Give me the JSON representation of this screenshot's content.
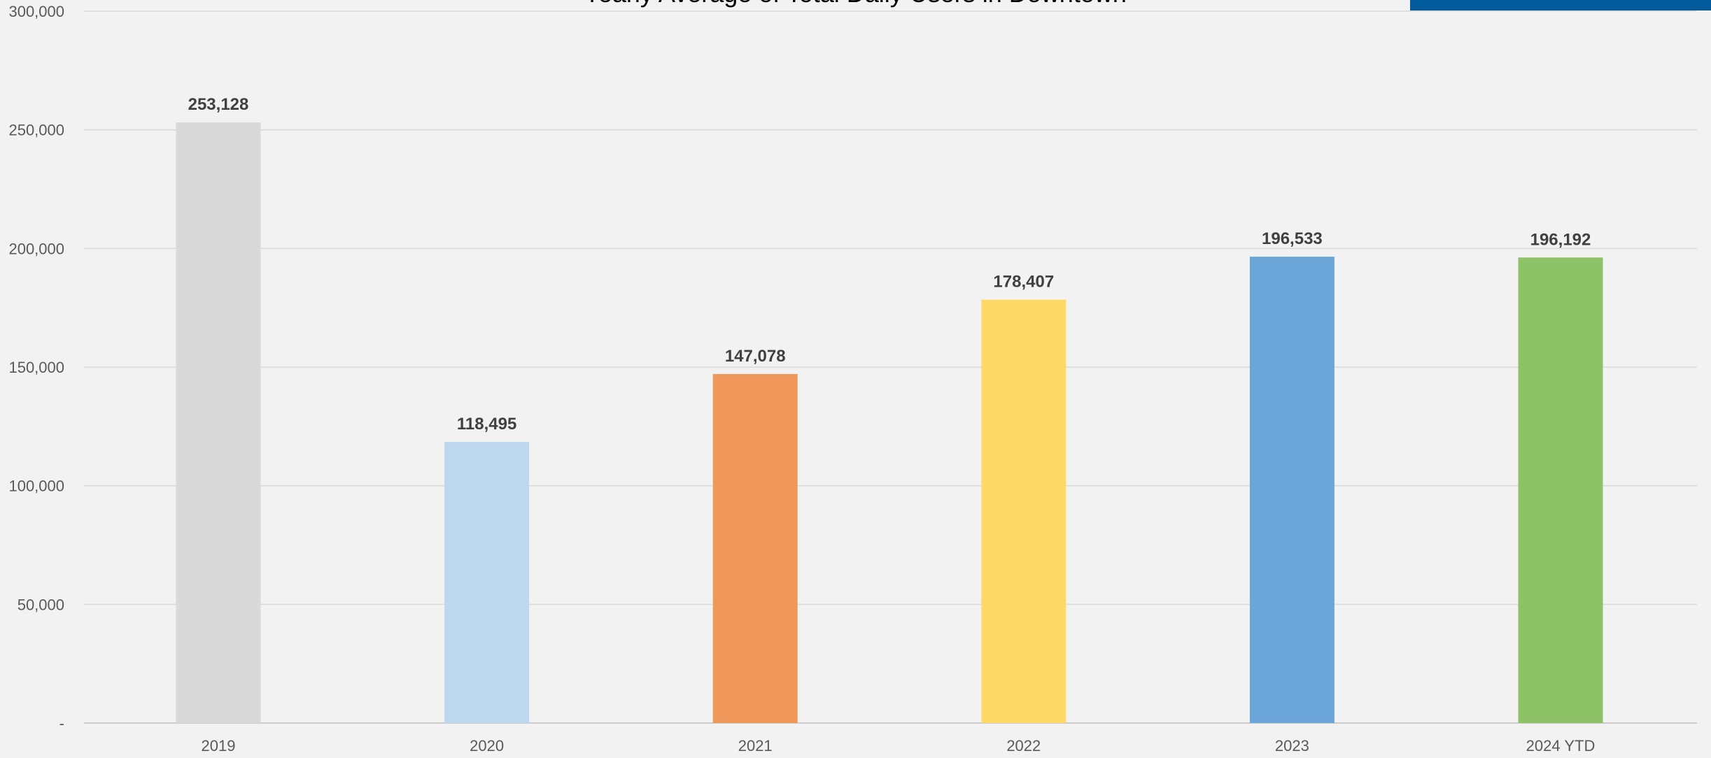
{
  "chart_data": {
    "type": "bar",
    "title": "Yearly Average of Total Daily Users in Downtown",
    "categories": [
      "2019",
      "2020",
      "2021",
      "2022",
      "2023",
      "2024 YTD"
    ],
    "values": [
      253128,
      118495,
      147078,
      178407,
      196533,
      196192
    ],
    "value_labels": [
      "253,128",
      "118,495",
      "147,078",
      "178,407",
      "196,533",
      "196,192"
    ],
    "bar_colors": [
      "#d9d9d9",
      "#bdd7ee",
      "#f0975b",
      "#fed966",
      "#6ca6d8",
      "#8dc267"
    ],
    "ylim": [
      0,
      300000
    ],
    "y_ticks": [
      0,
      50000,
      100000,
      150000,
      200000,
      250000,
      300000
    ],
    "y_tick_labels": [
      "-",
      "50,000",
      "100,000",
      "150,000",
      "200,000",
      "250,000",
      "300,000"
    ],
    "xlabel": "",
    "ylabel": "",
    "grid": true,
    "legend": "none",
    "accent_color": "#005a9c"
  }
}
